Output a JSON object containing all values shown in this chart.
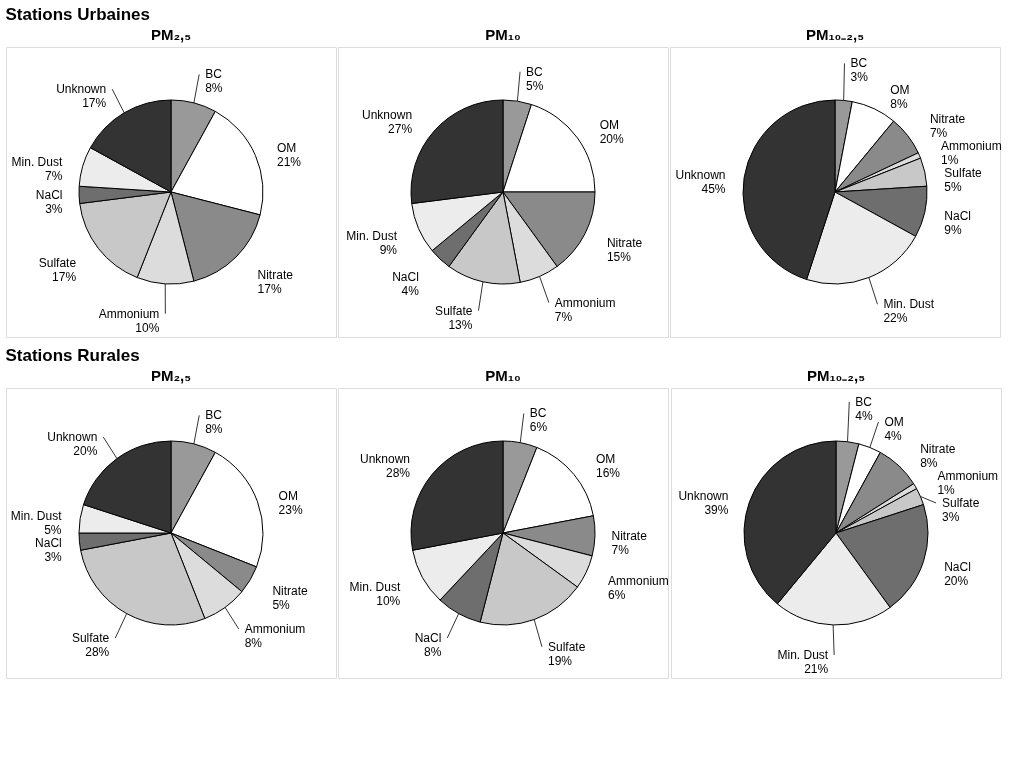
{
  "chart_data": [
    {
      "type": "pie",
      "title": "PM₂,₅",
      "annotations": [
        "Stations Urbaines"
      ],
      "categories": [
        "BC",
        "OM",
        "Nitrate",
        "Ammonium",
        "Sulfate",
        "NaCl",
        "Min. Dust",
        "Unknown"
      ],
      "values": [
        8,
        21,
        17,
        10,
        17,
        3,
        7,
        17
      ],
      "value_labels": [
        "8%",
        "21%",
        "17%",
        "10%",
        "17%",
        "3%",
        "7%",
        "17%"
      ],
      "colors": [
        "#999999",
        "#ffffff",
        "#8a8a8a",
        "#dcdcdc",
        "#c8c8c8",
        "#6e6e6e",
        "#ececec",
        "#333333"
      ]
    },
    {
      "type": "pie",
      "title": "PM₁₀",
      "categories": [
        "BC",
        "OM",
        "Nitrate",
        "Ammonium",
        "Sulfate",
        "NaCl",
        "Min. Dust",
        "Unknown"
      ],
      "values": [
        5,
        20,
        15,
        7,
        13,
        4,
        9,
        27
      ],
      "value_labels": [
        "5%",
        "20%",
        "15%",
        "7%",
        "13%",
        "4%",
        "9%",
        "27%"
      ],
      "colors": [
        "#999999",
        "#ffffff",
        "#8a8a8a",
        "#dcdcdc",
        "#c8c8c8",
        "#6e6e6e",
        "#ececec",
        "#333333"
      ]
    },
    {
      "type": "pie",
      "title": "PM₁₀₋₂,₅",
      "categories": [
        "BC",
        "OM",
        "Nitrate",
        "Ammonium",
        "Sulfate",
        "NaCl",
        "Min. Dust",
        "Unknown"
      ],
      "values": [
        3,
        8,
        7,
        1,
        5,
        9,
        22,
        45
      ],
      "value_labels": [
        "3%",
        "8%",
        "7%",
        "1%",
        "5%",
        "9%",
        "22%",
        "45%"
      ],
      "colors": [
        "#999999",
        "#ffffff",
        "#8a8a8a",
        "#dcdcdc",
        "#c8c8c8",
        "#6e6e6e",
        "#ececec",
        "#333333"
      ]
    },
    {
      "type": "pie",
      "title": "PM₂,₅",
      "annotations": [
        "Stations Rurales"
      ],
      "categories": [
        "BC",
        "OM",
        "Nitrate",
        "Ammonium",
        "Sulfate",
        "NaCl",
        "Min. Dust",
        "Unknown"
      ],
      "values": [
        8,
        23,
        5,
        8,
        28,
        3,
        5,
        20
      ],
      "value_labels": [
        "8%",
        "23%",
        "5%",
        "8%",
        "28%",
        "3%",
        "5%",
        "20%"
      ],
      "colors": [
        "#999999",
        "#ffffff",
        "#8a8a8a",
        "#dcdcdc",
        "#c8c8c8",
        "#6e6e6e",
        "#ececec",
        "#333333"
      ]
    },
    {
      "type": "pie",
      "title": "PM₁₀",
      "categories": [
        "BC",
        "OM",
        "Nitrate",
        "Ammonium",
        "Sulfate",
        "NaCl",
        "Min. Dust",
        "Unknown"
      ],
      "values": [
        6,
        16,
        7,
        6,
        19,
        8,
        10,
        28
      ],
      "value_labels": [
        "6%",
        "16%",
        "7%",
        "6%",
        "19%",
        "8%",
        "10%",
        "28%"
      ],
      "colors": [
        "#999999",
        "#ffffff",
        "#8a8a8a",
        "#dcdcdc",
        "#c8c8c8",
        "#6e6e6e",
        "#ececec",
        "#333333"
      ]
    },
    {
      "type": "pie",
      "title": "PM₁₀₋₂,₅",
      "categories": [
        "BC",
        "OM",
        "Nitrate",
        "Ammonium",
        "Sulfate",
        "NaCl",
        "Min. Dust",
        "Unknown"
      ],
      "values": [
        4,
        4,
        8,
        1,
        3,
        20,
        21,
        39
      ],
      "value_labels": [
        "4%",
        "4%",
        "8%",
        "1%",
        "3%",
        "20%",
        "21%",
        "39%"
      ],
      "colors": [
        "#999999",
        "#ffffff",
        "#8a8a8a",
        "#dcdcdc",
        "#c8c8c8",
        "#6e6e6e",
        "#ececec",
        "#333333"
      ]
    }
  ]
}
